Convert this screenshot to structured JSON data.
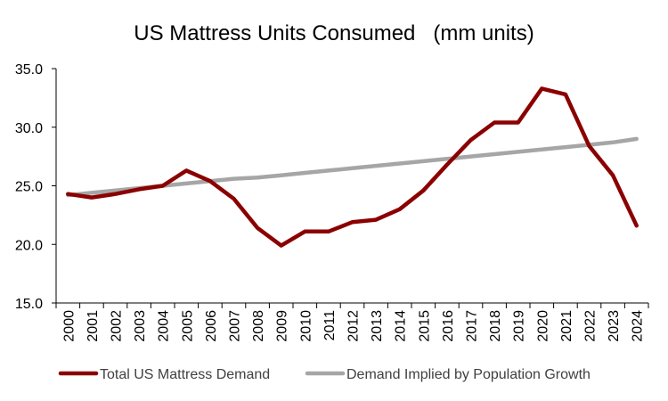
{
  "chart_data": {
    "type": "line",
    "title": "US Mattress Units Consumed   (mm units)",
    "x": [
      "2000",
      "2001",
      "2002",
      "2003",
      "2004",
      "2005",
      "2006",
      "2007",
      "2008",
      "2009",
      "2010",
      "2011",
      "2012",
      "2013",
      "2014",
      "2015",
      "2016",
      "2017",
      "2018",
      "2019",
      "2020",
      "2021",
      "2022",
      "2023",
      "2024"
    ],
    "ylim": [
      15,
      35
    ],
    "yticks": [
      "15.0",
      "20.0",
      "25.0",
      "30.0",
      "35.0"
    ],
    "grid": false,
    "legend_position": "bottom",
    "series": [
      {
        "name": "Total US Mattress Demand",
        "color": "#8B0000",
        "values": [
          24.3,
          24.0,
          24.3,
          24.7,
          25.0,
          26.3,
          25.4,
          23.9,
          21.4,
          19.9,
          21.1,
          21.1,
          21.9,
          22.1,
          23.0,
          24.6,
          26.8,
          28.9,
          30.4,
          30.4,
          33.3,
          32.8,
          28.4,
          25.9,
          21.6
        ]
      },
      {
        "name": "Demand Implied by Population Growth",
        "color": "#A6A6A6",
        "values": [
          24.2,
          24.4,
          24.6,
          24.8,
          25.0,
          25.2,
          25.4,
          25.6,
          25.7,
          25.9,
          26.1,
          26.3,
          26.5,
          26.7,
          26.9,
          27.1,
          27.3,
          27.5,
          27.7,
          27.9,
          28.1,
          28.3,
          28.5,
          28.7,
          29.0
        ]
      }
    ]
  }
}
